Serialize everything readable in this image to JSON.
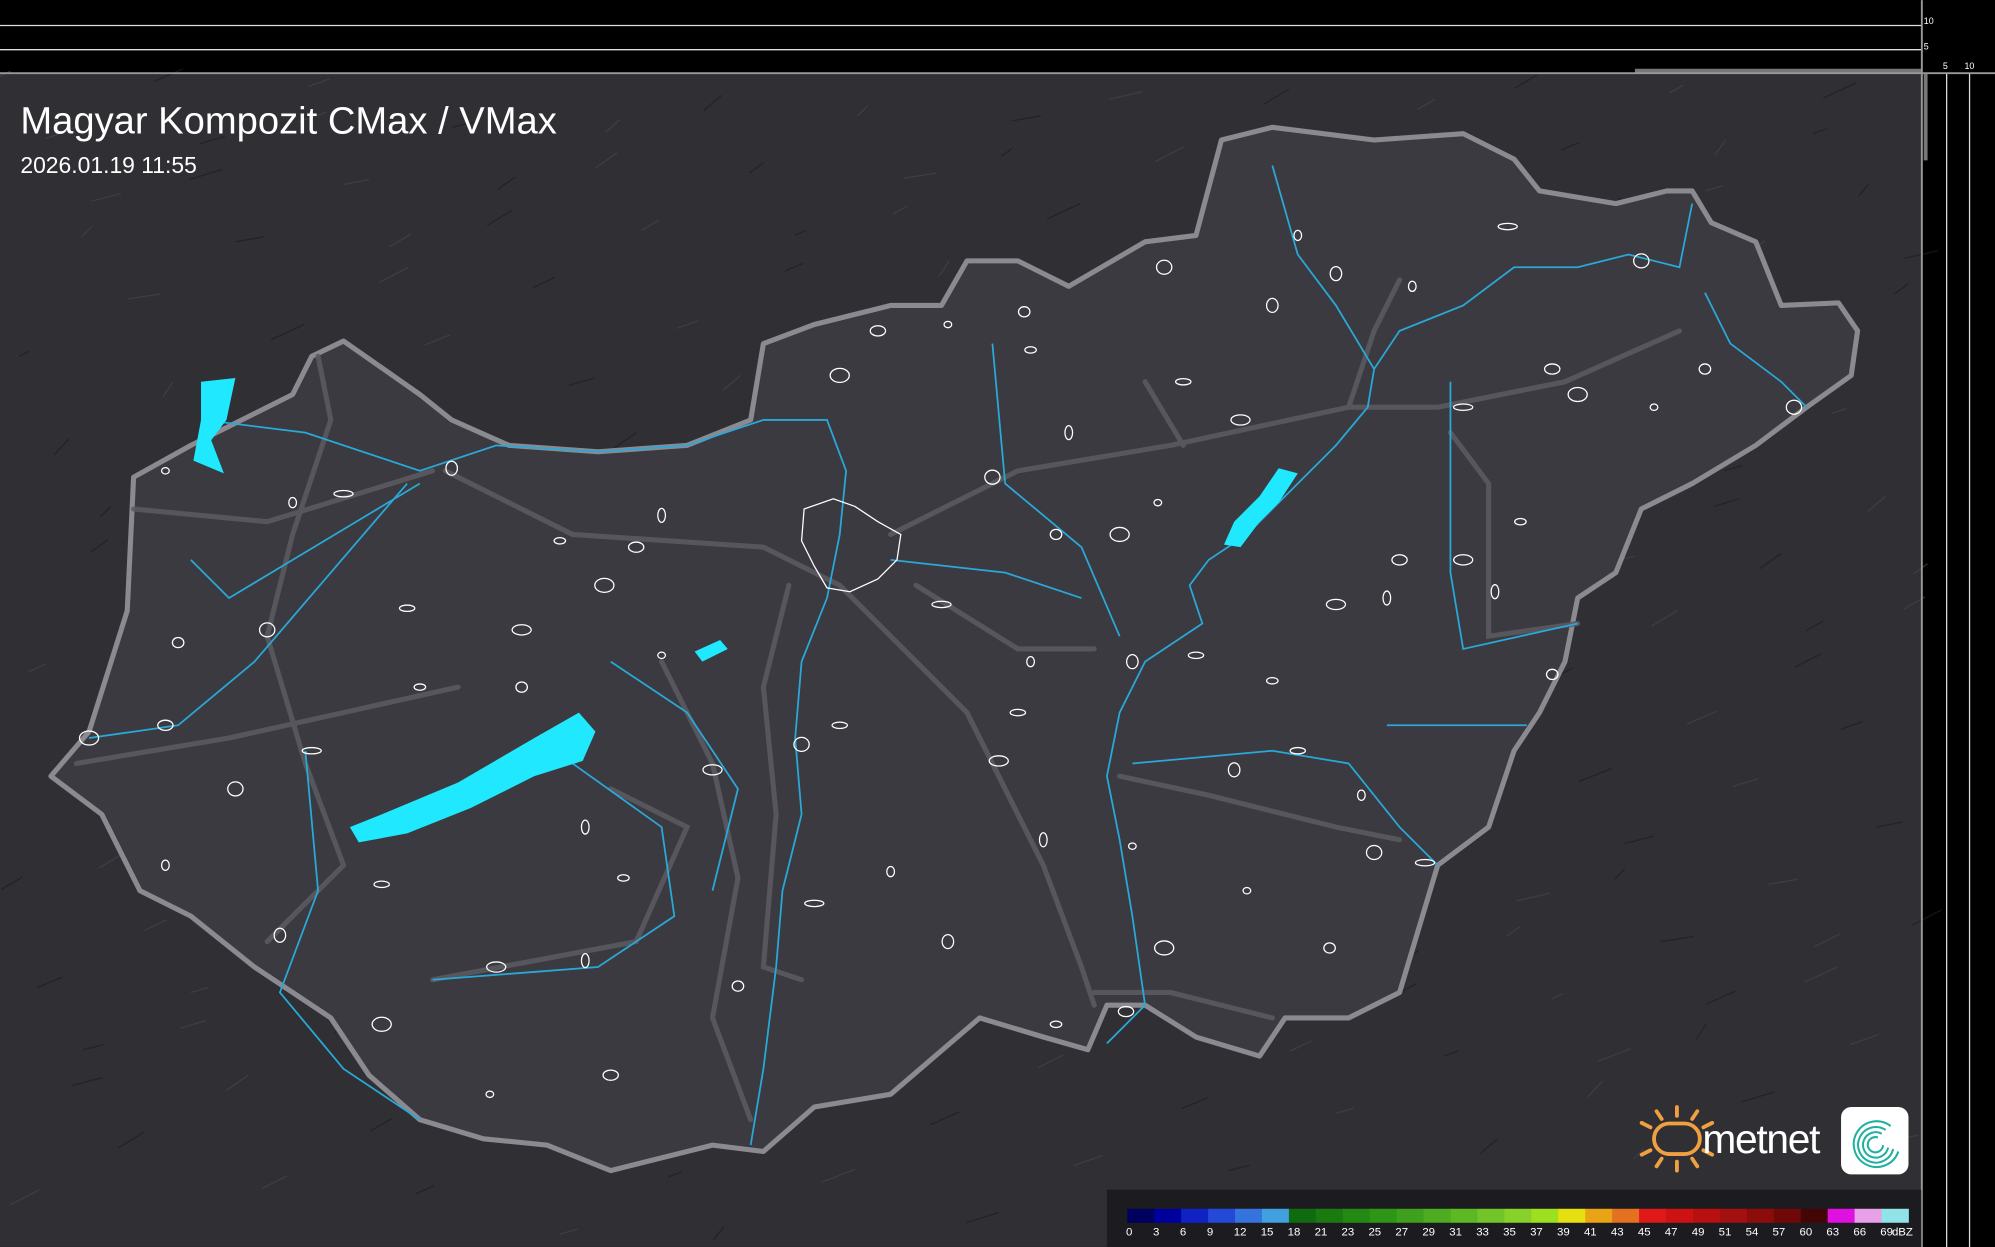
{
  "title": "Magyar Kompozit CMax / VMax",
  "timestamp": "2026.01.19 11:55",
  "profile_scale": {
    "top_labels": [
      "10",
      "5"
    ],
    "side_labels": [
      "5",
      "10"
    ]
  },
  "brand": {
    "name": "metnet",
    "sun_color": "#f0a040",
    "icon_color": "#20b0a0"
  },
  "colors": {
    "background": "#2f2f34",
    "border": "#8a8a90",
    "water": "#20e8ff",
    "river": "#2aa8d8"
  },
  "legend": {
    "unit": "dBZ",
    "labels": [
      "0",
      "3",
      "6",
      "9",
      "12",
      "15",
      "18",
      "21",
      "23",
      "25",
      "27",
      "29",
      "31",
      "33",
      "35",
      "37",
      "39",
      "41",
      "43",
      "45",
      "47",
      "49",
      "51",
      "54",
      "57",
      "60",
      "63",
      "66",
      "69"
    ],
    "colors": [
      "#00005e",
      "#00009c",
      "#1022c4",
      "#2448d8",
      "#3474dc",
      "#40a0e0",
      "#106a10",
      "#1a7a10",
      "#228a12",
      "#2e9616",
      "#3ea01c",
      "#4eac20",
      "#5eb824",
      "#72c428",
      "#88d02a",
      "#9ce020",
      "#e6e010",
      "#e8a414",
      "#e47020",
      "#e01818",
      "#cc1212",
      "#b81010",
      "#a41010",
      "#8c0c0c",
      "#700808",
      "#420606",
      "#e010e0",
      "#e8a0e8",
      "#90e4e8"
    ]
  }
}
